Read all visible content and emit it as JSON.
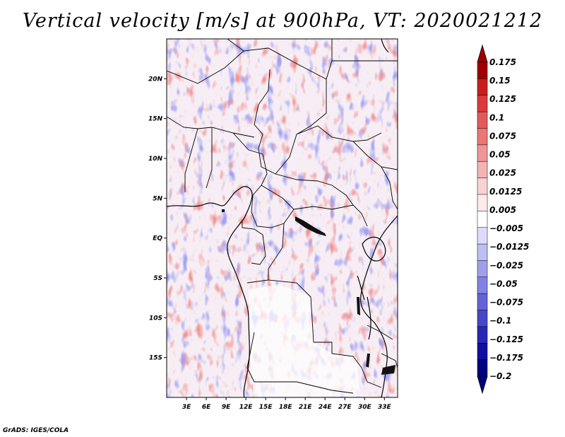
{
  "title": "Vertical velocity [m/s] at 900hPa, VT: 2020021212",
  "footer": "GrADS: IGES/COLA",
  "chart_data": {
    "type": "heatmap",
    "title": "Vertical velocity [m/s] at 900hPa, VT: 2020021212",
    "variable": "Vertical velocity",
    "units": "m/s",
    "level": "900hPa",
    "valid_time": "2020021212",
    "x_axis": {
      "range": [
        0,
        35
      ],
      "ticks": [
        3,
        6,
        9,
        12,
        15,
        18,
        21,
        24,
        27,
        30,
        33
      ],
      "tick_labels": [
        "3E",
        "6E",
        "9E",
        "12E",
        "15E",
        "18E",
        "21E",
        "24E",
        "27E",
        "30E",
        "33E"
      ]
    },
    "y_axis": {
      "range": [
        -20,
        25
      ],
      "ticks": [
        20,
        15,
        10,
        5,
        0,
        -5,
        -10,
        -15
      ],
      "tick_labels": [
        "20N",
        "15N",
        "10N",
        "5N",
        "EQ",
        "5S",
        "10S",
        "15S"
      ]
    },
    "colorbar": {
      "labels": [
        "0.175",
        "0.15",
        "0.125",
        "0.1",
        "0.075",
        "0.05",
        "0.025",
        "0.0125",
        "0.005",
        "−0.005",
        "−0.0125",
        "−0.025",
        "−0.05",
        "−0.075",
        "−0.1",
        "−0.125",
        "−0.175",
        "−0.2"
      ],
      "colors": [
        "#a00000",
        "#c81e1e",
        "#d93b3b",
        "#e35a5a",
        "#ea7676",
        "#f09595",
        "#f5b4b4",
        "#f9d2d2",
        "#fcebeb",
        "#ffffff",
        "#dcdcfa",
        "#bebef2",
        "#a0a0ea",
        "#8282e2",
        "#6464d7",
        "#4646c8",
        "#2828b4",
        "#0f0fa0",
        "#000082"
      ],
      "arrow_top_color": "#a00000",
      "arrow_bottom_color": "#000082"
    },
    "colors": {
      "positive": "#e05050",
      "negative": "#5050e0",
      "coastline": "#000000"
    }
  }
}
